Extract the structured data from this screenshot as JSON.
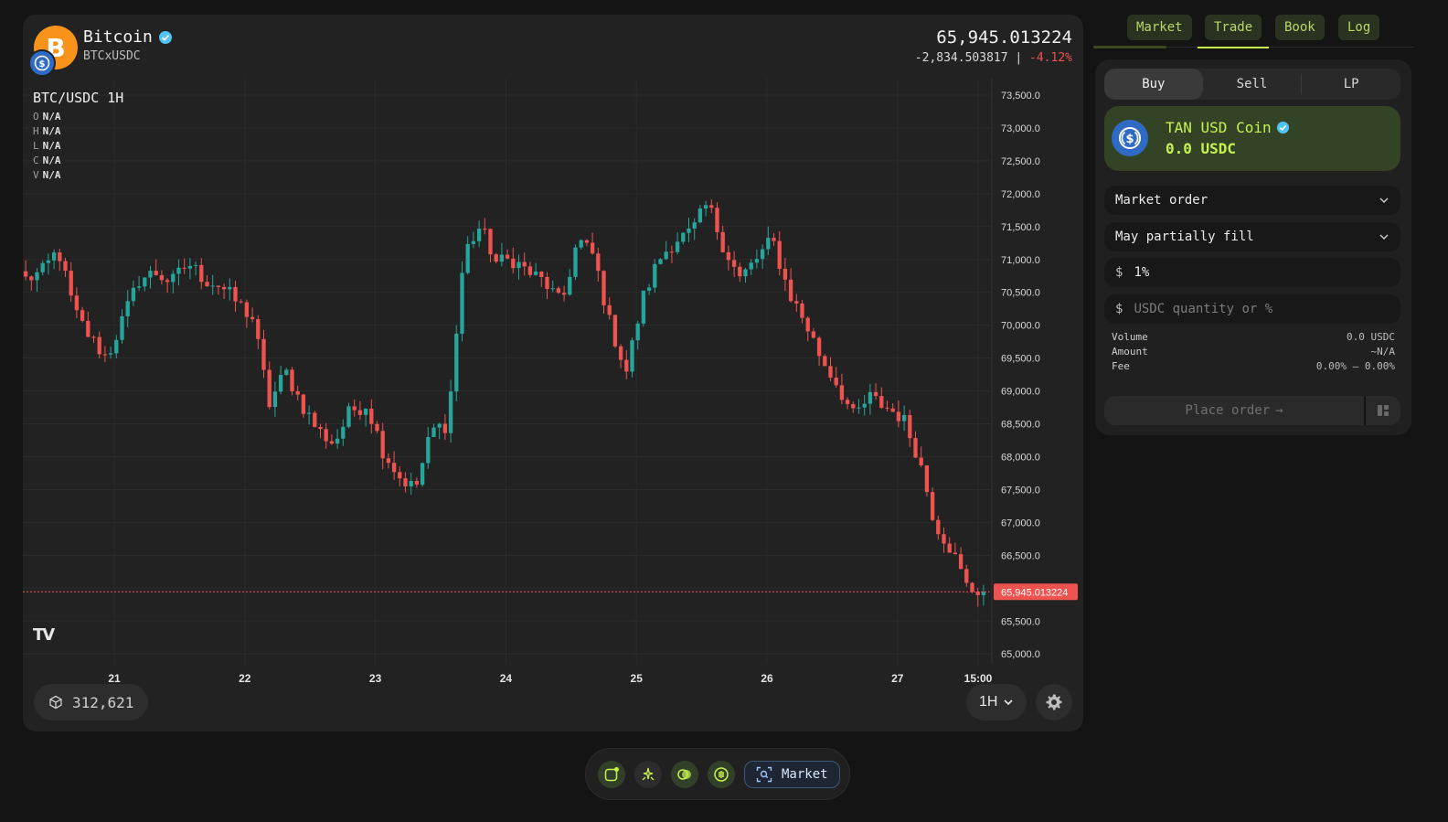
{
  "asset": {
    "name": "Bitcoin",
    "pair": "BTCxUSDC",
    "logo_glyph": "B"
  },
  "price": {
    "last": "65,945.013224",
    "change": "-2,834.503817",
    "separator": "|",
    "change_pct": "-4.12%"
  },
  "chart": {
    "title": "BTC/USDC 1H",
    "ohlc": [
      {
        "key": "O",
        "value": "N/A"
      },
      {
        "key": "H",
        "value": "N/A"
      },
      {
        "key": "L",
        "value": "N/A"
      },
      {
        "key": "C",
        "value": "N/A"
      },
      {
        "key": "V",
        "value": "N/A"
      }
    ],
    "last_price_tag": "65,945.013224",
    "tv_logo": "TV",
    "block_height": "312,621",
    "timeframe": "1H"
  },
  "chart_data": {
    "type": "candlestick",
    "title": "BTC/USDC 1H",
    "ylim": [
      64850,
      73750
    ],
    "y_ticks": [
      "73,500.0",
      "73,000.0",
      "72,500.0",
      "72,000.0",
      "71,500.0",
      "71,000.0",
      "70,500.0",
      "70,000.0",
      "69,500.0",
      "69,000.0",
      "68,500.0",
      "68,000.0",
      "67,500.0",
      "67,000.0",
      "66,500.0",
      "66,000.0",
      "65,500.0",
      "65,000.0"
    ],
    "x_ticks": [
      "21",
      "22",
      "23",
      "24",
      "25",
      "26",
      "27",
      "15:00"
    ],
    "anchors": [
      70700,
      70800,
      71150,
      70200,
      69800,
      69500,
      70100,
      70700,
      70800,
      70650,
      70950,
      70700,
      70600,
      70350,
      70100,
      68800,
      69300,
      68800,
      68400,
      68200,
      68700,
      68800,
      68100,
      67700,
      67500,
      68400,
      68500,
      71100,
      71500,
      70950,
      71000,
      70800,
      70650,
      70300,
      71300,
      71050,
      70000,
      69300,
      70400,
      71000,
      71300,
      71400,
      71850,
      71200,
      70700,
      71000,
      71300,
      70500,
      70050,
      69500,
      69100,
      68600,
      68900,
      68750,
      68600,
      68000,
      67000,
      66600,
      66000,
      65950
    ],
    "colors": {
      "up": "#26a69a",
      "down": "#ef5350"
    }
  },
  "top_tabs": [
    {
      "label": "Market"
    },
    {
      "label": "Trade",
      "active": true
    },
    {
      "label": "Book"
    },
    {
      "label": "Log"
    }
  ],
  "trade": {
    "sides": [
      "Buy",
      "Sell",
      "LP"
    ],
    "active_side": "Buy",
    "token": {
      "name": "TAN USD Coin",
      "balance": "0.0 USDC"
    },
    "order_type": "Market order",
    "fill_policy": "May partially fill",
    "slippage_prefix": "$",
    "slippage_value": "1%",
    "quantity_prefix": "$",
    "quantity_placeholder": "USDC quantity or %",
    "summary": [
      {
        "label": "Volume",
        "value": "0.0 USDC"
      },
      {
        "label": "Amount",
        "value": "~N/A"
      },
      {
        "label": "Fee",
        "value": "0.00% — 0.00%"
      }
    ],
    "place_order_label": "Place order",
    "place_order_arrow": "→"
  },
  "toolbar": {
    "market_label": "Market"
  },
  "colors": {
    "accent": "#c6f24e",
    "up": "#26a69a",
    "down": "#ef5350",
    "usdc": "#2f6ac5",
    "btc": "#f7931a"
  },
  "icons": [
    "verified-icon",
    "usdc-icon",
    "cube-icon",
    "chevron-down-icon",
    "gear-icon",
    "arrow-right-icon",
    "layout-icon",
    "note-icon",
    "sparkle-icon",
    "toggle-icon",
    "broadcast-icon",
    "search-icon"
  ]
}
